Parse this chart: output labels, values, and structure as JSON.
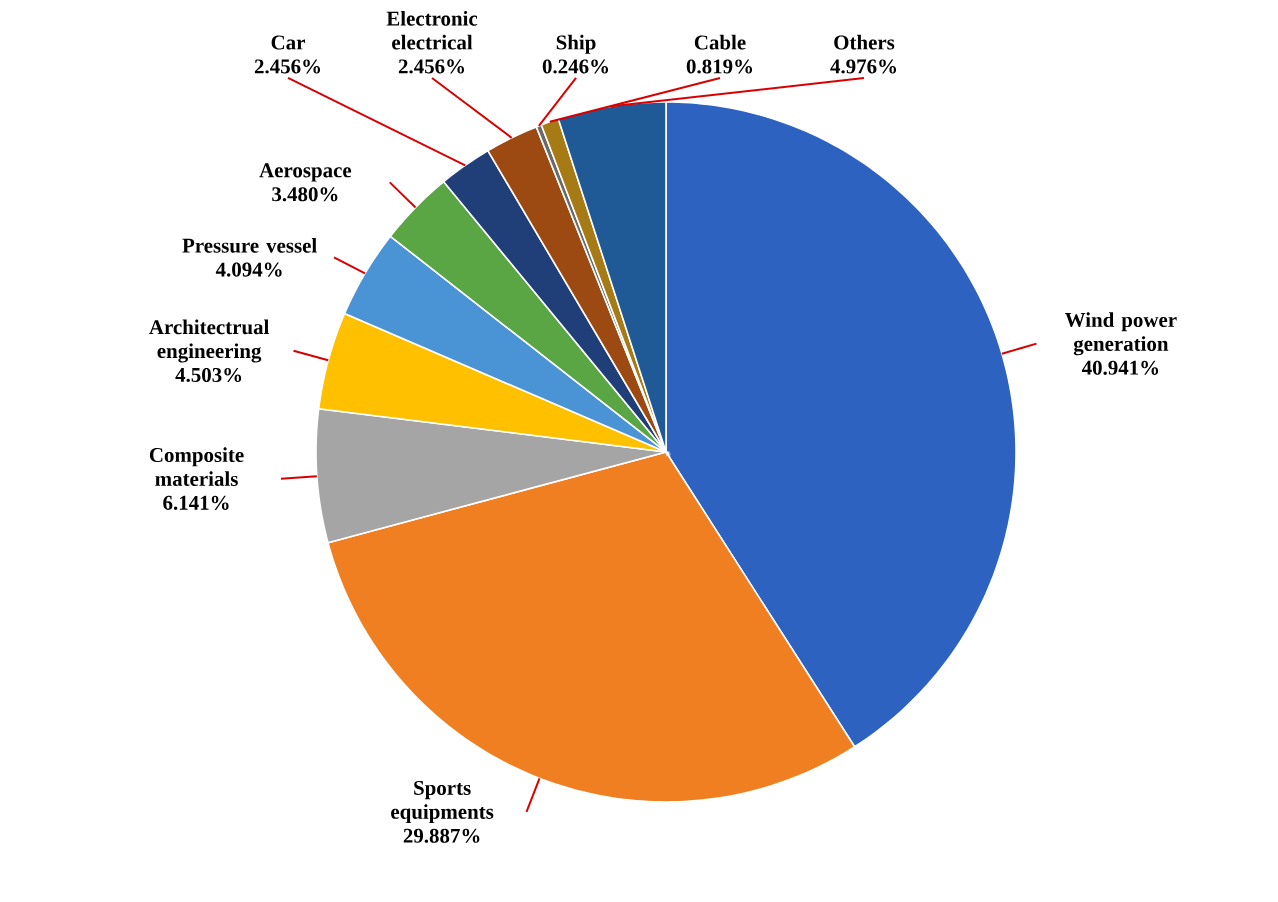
{
  "chart_data": {
    "type": "pie",
    "categories": [
      "Wind power generation",
      "Sports equipments",
      "Composite materials",
      "Architectrual engineering",
      "Pressure vessel",
      "Aerospace",
      "Car",
      "Electronic electrical",
      "Ship",
      "Cable",
      "Others"
    ],
    "values": [
      40.941,
      29.887,
      6.141,
      4.503,
      4.094,
      3.48,
      2.456,
      2.456,
      0.246,
      0.819,
      4.976
    ],
    "value_labels": [
      "40.941%",
      "29.887%",
      "6.141%",
      "4.503%",
      "4.094%",
      "3.480%",
      "2.456%",
      "2.456%",
      "0.246%",
      "0.819%",
      "4.976%"
    ],
    "colors": [
      "#2e62c0",
      "#f07f22",
      "#a5a5a5",
      "#ffc000",
      "#4a94d6",
      "#5aa544",
      "#203e78",
      "#9c4a12",
      "#6a6a6a",
      "#a67a14",
      "#1f5a96"
    ]
  }
}
